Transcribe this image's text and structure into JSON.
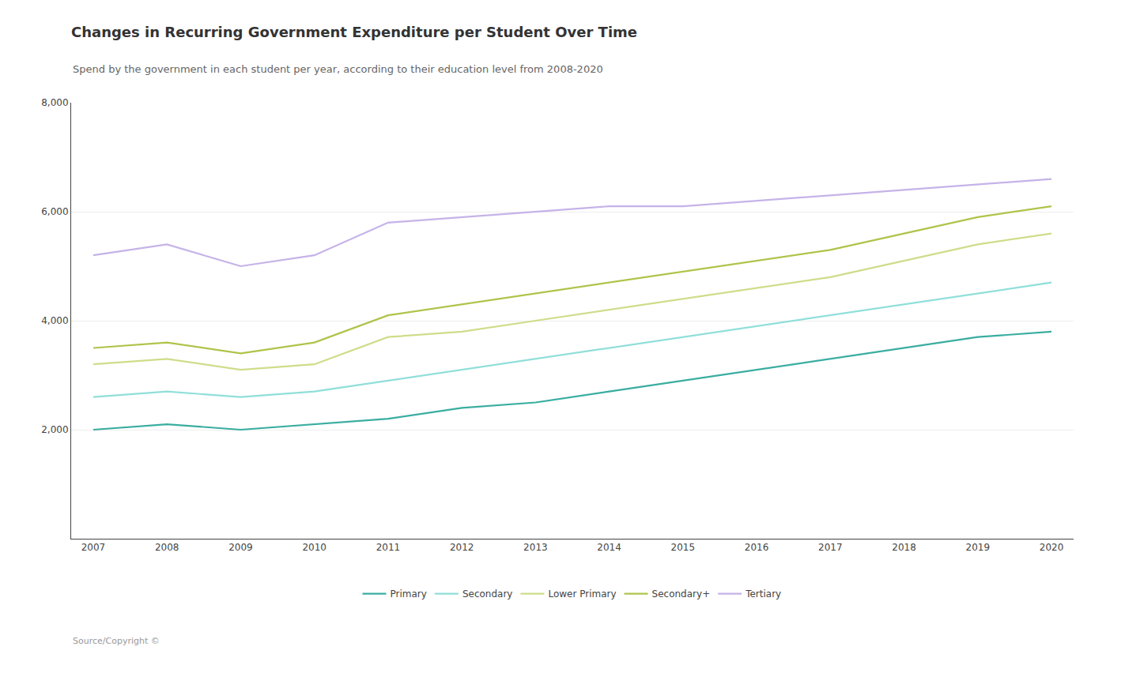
{
  "chart_data": {
    "type": "line",
    "title": "Changes in Recurring Government Expenditure per Student Over Time",
    "subtitle": "Spend by the government in each student per year, according to their education level from 2008-2020",
    "source": "Source/Copyright ©",
    "x": [
      2007,
      2008,
      2009,
      2010,
      2011,
      2012,
      2013,
      2014,
      2015,
      2016,
      2017,
      2018,
      2019,
      2020
    ],
    "series": [
      {
        "name": "Primary",
        "color": "#3aada0",
        "values": [
          2000,
          2100,
          2000,
          2100,
          2200,
          2400,
          2500,
          2700,
          2900,
          3100,
          3300,
          3500,
          3700,
          3800
        ]
      },
      {
        "name": "Secondary",
        "color": "#90dfd9",
        "values": [
          2600,
          2700,
          2600,
          2700,
          2900,
          3100,
          3300,
          3500,
          3700,
          3900,
          4100,
          4300,
          4500,
          4700
        ]
      },
      {
        "name": "Lower Primary",
        "color": "#cedd8a",
        "values": [
          3200,
          3300,
          3100,
          3200,
          3700,
          3800,
          4000,
          4200,
          4400,
          4600,
          4800,
          5100,
          5400,
          5600
        ]
      },
      {
        "name": "Secondary+",
        "color": "#aec44a",
        "values": [
          3500,
          3600,
          3400,
          3600,
          4100,
          4300,
          4500,
          4700,
          4900,
          5100,
          5300,
          5600,
          5900,
          6100
        ]
      },
      {
        "name": "Tertiary",
        "color": "#c5b3e8",
        "values": [
          5200,
          5400,
          5000,
          5200,
          5800,
          5900,
          6000,
          6100,
          6100,
          6200,
          6300,
          6400,
          6500,
          6600
        ]
      }
    ],
    "xlim": [
      2006.7,
      2020.3
    ],
    "xticks": [
      2007,
      2008,
      2009,
      2010,
      2011,
      2012,
      2013,
      2014,
      2015,
      2016,
      2017,
      2018,
      2019,
      2020
    ],
    "ylim": [
      0,
      8000
    ],
    "yticks": [
      {
        "value": 2000,
        "label": "2,000"
      },
      {
        "value": 4000,
        "label": "4,000"
      },
      {
        "value": 6000,
        "label": "6,000"
      },
      {
        "value": 8000,
        "label": "8,000"
      }
    ],
    "grid": true,
    "legend": "bottom"
  }
}
